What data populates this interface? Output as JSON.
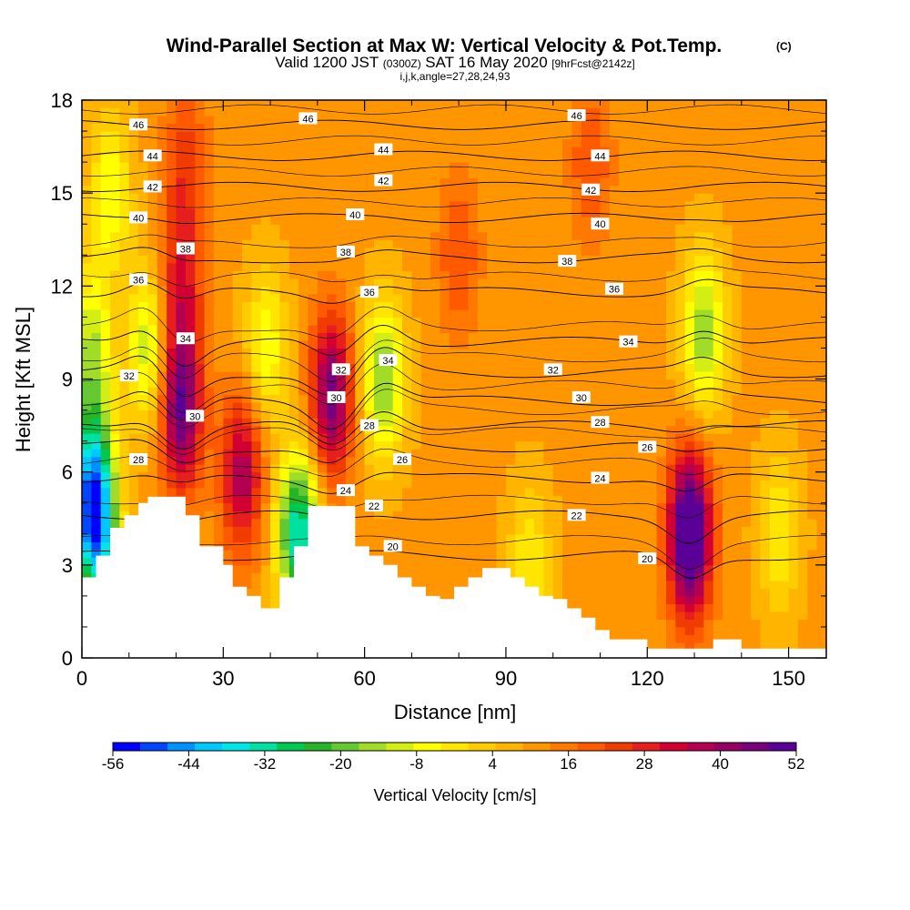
{
  "chart_data": {
    "type": "heatmap",
    "title": "Wind-Parallel Section at Max W: Vertical Velocity & Pot.Temp.",
    "title_mark": "(C)",
    "subtitle": {
      "valid": "Valid 1200 JST",
      "utc": "(0300Z)",
      "date": "SAT 16 May 2020",
      "fcst": "[9hrFcst@2142z]"
    },
    "indices": "i,j,k,angle=27,28,24,93",
    "xlabel": "Distance [nm]",
    "ylabel": "Height [Kft MSL]",
    "xlim": [
      0,
      158
    ],
    "ylim": [
      0,
      18
    ],
    "x_ticks": [
      "0",
      "30",
      "60",
      "90",
      "120",
      "150"
    ],
    "y_ticks": [
      "0",
      "3",
      "6",
      "9",
      "12",
      "15",
      "18"
    ],
    "colorbar": {
      "label": "Vertical Velocity [cm/s]",
      "tick_labels": [
        "-56",
        "-44",
        "-32",
        "-20",
        "-8",
        "4",
        "16",
        "28",
        "40",
        "52"
      ],
      "min": -56,
      "max": 52,
      "colors": [
        "#0000ff",
        "#0046ff",
        "#0090ff",
        "#00c8ff",
        "#00e6e6",
        "#00e0a0",
        "#00c850",
        "#28b428",
        "#64c832",
        "#a0dc28",
        "#d2ee14",
        "#ffff00",
        "#ffe600",
        "#ffcc00",
        "#ffb400",
        "#ff9600",
        "#ff7800",
        "#ff5a00",
        "#f03c00",
        "#e61e1e",
        "#d20032",
        "#b40050",
        "#960064",
        "#78007d",
        "#5a0096"
      ]
    },
    "background_w": 10,
    "w_features": [
      {
        "x": 2,
        "z": 10,
        "amp": -22
      },
      {
        "x": 3,
        "z": 4,
        "amp": -48
      },
      {
        "x": 6,
        "z": 15,
        "amp": -18
      },
      {
        "x": 2,
        "z": 6,
        "amp": -32
      },
      {
        "x": 14,
        "z": 10,
        "amp": -22
      },
      {
        "x": 21,
        "z": 8,
        "amp": 38
      },
      {
        "x": 21,
        "z": 12,
        "amp": 20
      },
      {
        "x": 22,
        "z": 16,
        "amp": 14
      },
      {
        "x": 34,
        "z": 6,
        "amp": 28
      },
      {
        "x": 39,
        "z": 10,
        "amp": -18
      },
      {
        "x": 46,
        "z": 4,
        "amp": -45
      },
      {
        "x": 53,
        "z": 8.5,
        "amp": 36
      },
      {
        "x": 64,
        "z": 9,
        "amp": -28
      },
      {
        "x": 80,
        "z": 13,
        "amp": 12
      },
      {
        "x": 95,
        "z": 3,
        "amp": -14
      },
      {
        "x": 129,
        "z": 4,
        "amp": 52
      },
      {
        "x": 132,
        "z": 10.5,
        "amp": -26
      },
      {
        "x": 148,
        "z": 4,
        "amp": -14
      },
      {
        "x": 108,
        "z": 16,
        "amp": 12
      }
    ],
    "theta_levels": [
      20,
      22,
      24,
      26,
      28,
      30,
      32,
      34,
      36,
      38,
      40,
      42,
      44,
      46
    ],
    "theta_height_kft": {
      "20": 3.3,
      "22": 4.6,
      "24": 5.8,
      "26": 6.8,
      "28": 7.5,
      "30": 8.3,
      "32": 9.2,
      "34": 10.2,
      "36": 11.8,
      "38": 12.9,
      "40": 14.2,
      "42": 15.2,
      "44": 16.2,
      "46": 17.2
    },
    "contour_labels": [
      {
        "text": "46",
        "x": 12,
        "z": 17.2
      },
      {
        "text": "46",
        "x": 48,
        "z": 17.4
      },
      {
        "text": "46",
        "x": 105,
        "z": 17.5
      },
      {
        "text": "44",
        "x": 15,
        "z": 16.2
      },
      {
        "text": "44",
        "x": 64,
        "z": 16.4
      },
      {
        "text": "44",
        "x": 110,
        "z": 16.2
      },
      {
        "text": "42",
        "x": 15,
        "z": 15.2
      },
      {
        "text": "42",
        "x": 64,
        "z": 15.4
      },
      {
        "text": "42",
        "x": 108,
        "z": 15.1
      },
      {
        "text": "40",
        "x": 12,
        "z": 14.2
      },
      {
        "text": "40",
        "x": 58,
        "z": 14.3
      },
      {
        "text": "40",
        "x": 110,
        "z": 14.0
      },
      {
        "text": "38",
        "x": 22,
        "z": 13.2
      },
      {
        "text": "38",
        "x": 56,
        "z": 13.1
      },
      {
        "text": "38",
        "x": 103,
        "z": 12.8
      },
      {
        "text": "36",
        "x": 12,
        "z": 12.2
      },
      {
        "text": "36",
        "x": 61,
        "z": 11.8
      },
      {
        "text": "36",
        "x": 113,
        "z": 11.9
      },
      {
        "text": "34",
        "x": 22,
        "z": 10.3
      },
      {
        "text": "34",
        "x": 65,
        "z": 9.6
      },
      {
        "text": "34",
        "x": 116,
        "z": 10.2
      },
      {
        "text": "32",
        "x": 10,
        "z": 9.1
      },
      {
        "text": "32",
        "x": 55,
        "z": 9.3
      },
      {
        "text": "32",
        "x": 100,
        "z": 9.3
      },
      {
        "text": "30",
        "x": 24,
        "z": 7.8
      },
      {
        "text": "30",
        "x": 54,
        "z": 8.4
      },
      {
        "text": "30",
        "x": 106,
        "z": 8.4
      },
      {
        "text": "28",
        "x": 12,
        "z": 6.4
      },
      {
        "text": "28",
        "x": 61,
        "z": 7.5
      },
      {
        "text": "28",
        "x": 110,
        "z": 7.6
      },
      {
        "text": "26",
        "x": 68,
        "z": 6.4
      },
      {
        "text": "26",
        "x": 120,
        "z": 6.8
      },
      {
        "text": "24",
        "x": 56,
        "z": 5.4
      },
      {
        "text": "24",
        "x": 110,
        "z": 5.8
      },
      {
        "text": "22",
        "x": 62,
        "z": 4.9
      },
      {
        "text": "22",
        "x": 105,
        "z": 4.6
      },
      {
        "text": "20",
        "x": 66,
        "z": 3.6
      },
      {
        "text": "20",
        "x": 120,
        "z": 3.2
      }
    ],
    "terrain_steps": [
      {
        "x0": 0,
        "x1": 3,
        "top": 2.6
      },
      {
        "x0": 3,
        "x1": 6,
        "top": 3.3
      },
      {
        "x0": 6,
        "x1": 9,
        "top": 4.2
      },
      {
        "x0": 9,
        "x1": 12,
        "top": 4.6
      },
      {
        "x0": 12,
        "x1": 14,
        "top": 5.0
      },
      {
        "x0": 14,
        "x1": 22,
        "top": 5.2
      },
      {
        "x0": 22,
        "x1": 25,
        "top": 4.6
      },
      {
        "x0": 25,
        "x1": 27,
        "top": 3.6
      },
      {
        "x0": 27,
        "x1": 30,
        "top": 3.6
      },
      {
        "x0": 30,
        "x1": 32,
        "top": 3.0
      },
      {
        "x0": 32,
        "x1": 35,
        "top": 2.3
      },
      {
        "x0": 35,
        "x1": 38,
        "top": 2.0
      },
      {
        "x0": 38,
        "x1": 40,
        "top": 1.6
      },
      {
        "x0": 40,
        "x1": 42,
        "top": 1.6
      },
      {
        "x0": 42,
        "x1": 45,
        "top": 2.6
      },
      {
        "x0": 45,
        "x1": 48,
        "top": 3.6
      },
      {
        "x0": 48,
        "x1": 55,
        "top": 4.9
      },
      {
        "x0": 55,
        "x1": 58,
        "top": 4.9
      },
      {
        "x0": 58,
        "x1": 61,
        "top": 3.6
      },
      {
        "x0": 61,
        "x1": 64,
        "top": 3.3
      },
      {
        "x0": 64,
        "x1": 67,
        "top": 3.0
      },
      {
        "x0": 67,
        "x1": 70,
        "top": 2.6
      },
      {
        "x0": 70,
        "x1": 73,
        "top": 2.3
      },
      {
        "x0": 73,
        "x1": 76,
        "top": 2.0
      },
      {
        "x0": 76,
        "x1": 79,
        "top": 1.9
      },
      {
        "x0": 79,
        "x1": 82,
        "top": 2.3
      },
      {
        "x0": 82,
        "x1": 85,
        "top": 2.6
      },
      {
        "x0": 85,
        "x1": 88,
        "top": 2.9
      },
      {
        "x0": 88,
        "x1": 91,
        "top": 2.9
      },
      {
        "x0": 91,
        "x1": 94,
        "top": 2.6
      },
      {
        "x0": 94,
        "x1": 97,
        "top": 2.3
      },
      {
        "x0": 97,
        "x1": 100,
        "top": 2.0
      },
      {
        "x0": 100,
        "x1": 103,
        "top": 1.9
      },
      {
        "x0": 103,
        "x1": 106,
        "top": 1.6
      },
      {
        "x0": 106,
        "x1": 109,
        "top": 1.3
      },
      {
        "x0": 109,
        "x1": 112,
        "top": 0.9
      },
      {
        "x0": 112,
        "x1": 115,
        "top": 0.6
      },
      {
        "x0": 115,
        "x1": 120,
        "top": 0.6
      },
      {
        "x0": 120,
        "x1": 124,
        "top": 0.3
      },
      {
        "x0": 124,
        "x1": 134,
        "top": 0.3
      },
      {
        "x0": 134,
        "x1": 140,
        "top": 0.6
      },
      {
        "x0": 140,
        "x1": 145,
        "top": 0.3
      },
      {
        "x0": 145,
        "x1": 150,
        "top": 0.3
      },
      {
        "x0": 150,
        "x1": 158,
        "top": 0.3
      }
    ]
  }
}
